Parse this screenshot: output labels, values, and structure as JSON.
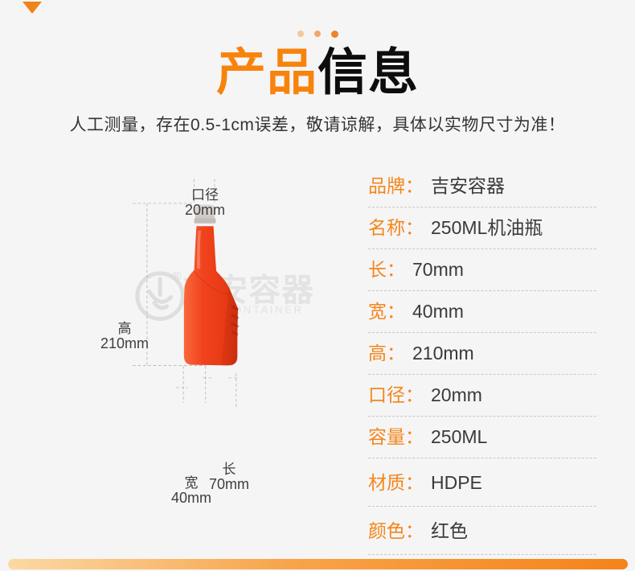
{
  "page": {
    "background": "#f5f5f6",
    "accent": "#f5861a"
  },
  "decor": {
    "corner_triangle_color": "#f0831a",
    "footer_bar_colors": [
      "#fbd9a4",
      "#f8a44a",
      "#f5831a"
    ]
  },
  "header": {
    "dot_colors": [
      "#f6c79c",
      "#f3a76b",
      "#ef8227"
    ],
    "title_orange": "产品",
    "title_black": "信息",
    "subtitle": "人工测量，存在0.5-1cm误差，敬请谅解，具体以实物尺寸为准！"
  },
  "figure": {
    "watermark_cn": "吉安容器",
    "watermark_en": "JIAN CONTAINER",
    "registered_mark": "®",
    "bottle_color": "#f1431d",
    "cap_color": "#d5d0cc",
    "annotations": {
      "mouth": {
        "label": "口径",
        "value": "20mm"
      },
      "height": {
        "label": "高",
        "value": "210mm"
      },
      "width": {
        "label": "宽",
        "value": "40mm"
      },
      "length": {
        "label": "长",
        "value": "70mm"
      }
    }
  },
  "specs": {
    "colon": "：",
    "rows": [
      {
        "label": "品牌",
        "value": "吉安容器"
      },
      {
        "label": "名称",
        "value": "250ML机油瓶"
      },
      {
        "label": "长",
        "value": "70mm"
      },
      {
        "label": "宽",
        "value": "40mm"
      },
      {
        "label": "高",
        "value": "210mm"
      },
      {
        "label": "口径",
        "value": "20mm"
      },
      {
        "label": "容量",
        "value": "250ML"
      },
      {
        "label": "材质",
        "value": "HDPE"
      },
      {
        "label": "颜色",
        "value": "红色"
      }
    ]
  }
}
